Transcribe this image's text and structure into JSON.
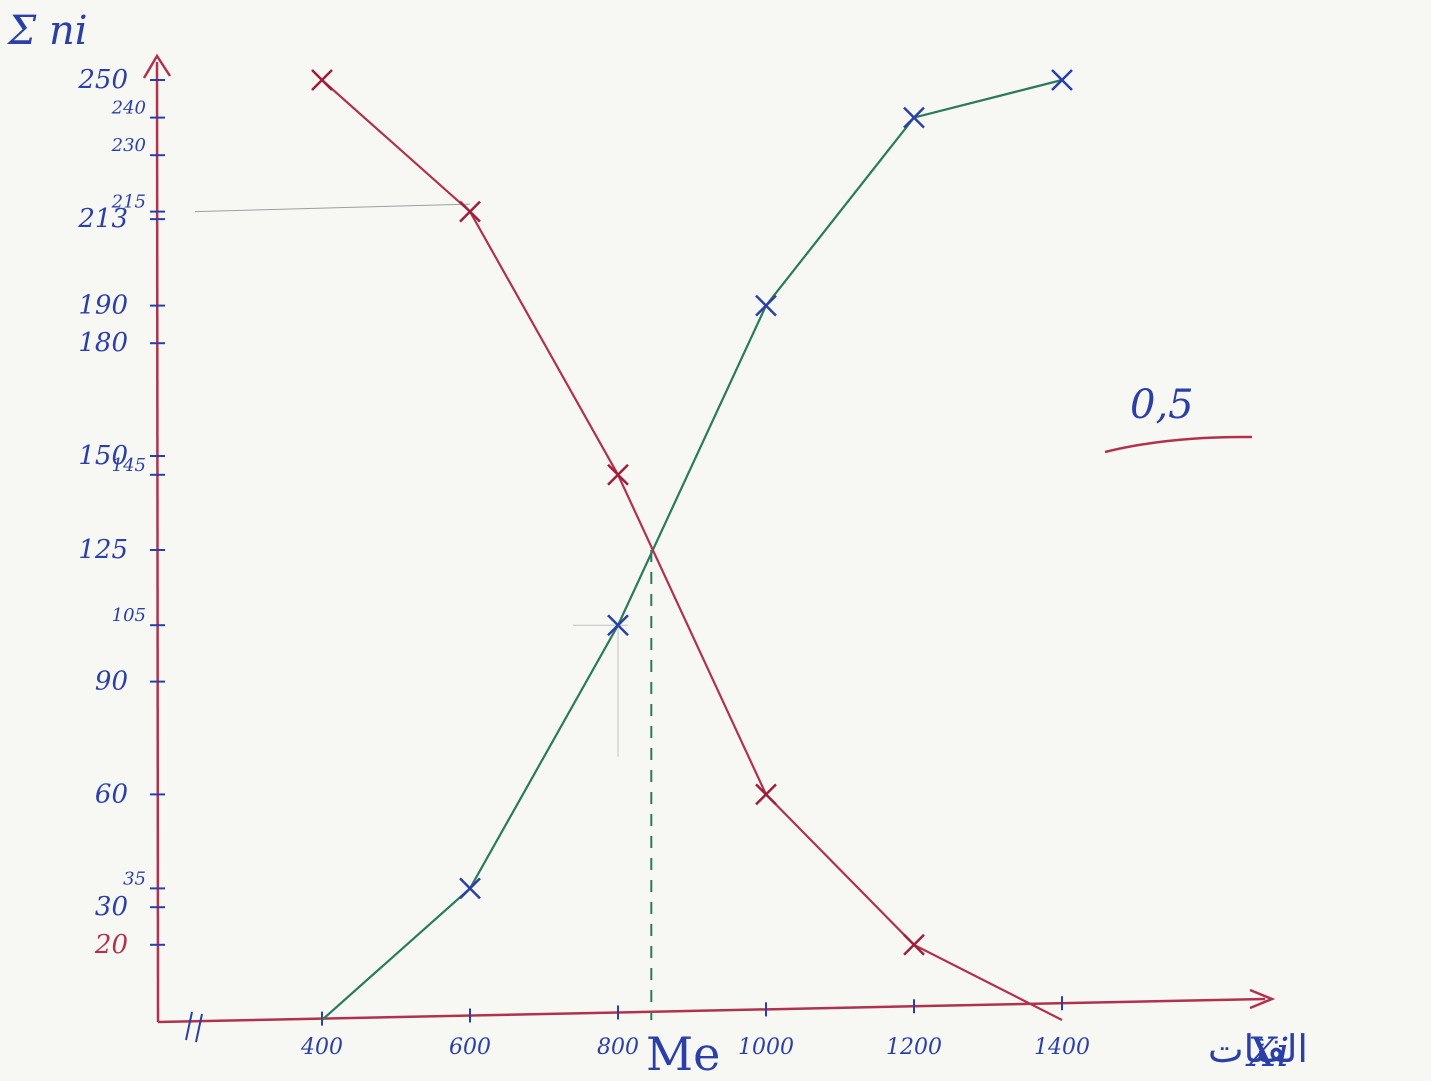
{
  "chart_data": {
    "type": "line",
    "ylabel": "Σ ni",
    "xlabel": "Xi",
    "xlabel_arabic": "الفئات",
    "x_ticks": [
      "400",
      "600",
      "800",
      "1000",
      "1200",
      "1400"
    ],
    "y_ticks": [
      {
        "value": 250,
        "label": "250",
        "color": "navy"
      },
      {
        "value": 240,
        "label": "240",
        "color": "navy"
      },
      {
        "value": 230,
        "label": "230",
        "color": "navy"
      },
      {
        "value": 215,
        "label": "215",
        "color": "navy"
      },
      {
        "value": 213,
        "label": "213",
        "color": "navy"
      },
      {
        "value": 190,
        "label": "190",
        "color": "navy"
      },
      {
        "value": 180,
        "label": "180",
        "color": "navy"
      },
      {
        "value": 150,
        "label": "150",
        "color": "navy"
      },
      {
        "value": 145,
        "label": "145",
        "color": "navy"
      },
      {
        "value": 125,
        "label": "125",
        "color": "navy"
      },
      {
        "value": 105,
        "label": "105",
        "color": "navy"
      },
      {
        "value": 90,
        "label": "90",
        "color": "navy"
      },
      {
        "value": 60,
        "label": "60",
        "color": "navy"
      },
      {
        "value": 35,
        "label": "35",
        "color": "navy"
      },
      {
        "value": 30,
        "label": "30",
        "color": "navy"
      },
      {
        "value": 20,
        "label": "20",
        "color": "red"
      }
    ],
    "series": [
      {
        "color": "#2a7a5c",
        "marker_color": "#2b3fa8",
        "x": [
          400,
          600,
          800,
          1000,
          1200,
          1400
        ],
        "y": [
          0,
          35,
          105,
          190,
          240,
          250
        ]
      },
      {
        "color": "#b1324c",
        "marker_color": "#a01e3a",
        "x": [
          400,
          600,
          800,
          1000,
          1200,
          1400
        ],
        "y": [
          250,
          215,
          145,
          60,
          20,
          0
        ]
      }
    ],
    "intersection": {
      "x": 845,
      "y": 125
    },
    "annotations": {
      "median": "Me",
      "grade": "0,5"
    }
  }
}
